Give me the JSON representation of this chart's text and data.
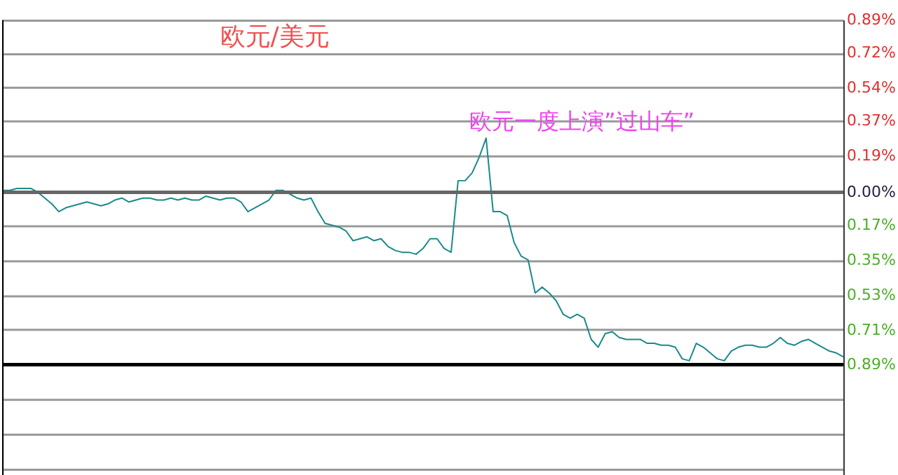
{
  "chart_data": {
    "type": "line",
    "title": "欧元/美元",
    "annotations": [
      "欧元一度上演”过山车”"
    ],
    "categories": [
      null,
      null,
      null,
      null,
      null,
      null,
      null,
      null,
      null,
      null,
      null,
      null,
      null,
      null,
      null,
      null,
      null,
      null,
      null,
      null,
      null,
      null,
      null,
      null,
      null,
      null,
      null,
      null,
      null,
      null,
      null,
      null,
      null,
      null,
      null,
      null,
      null,
      null,
      null,
      null,
      null,
      null,
      null,
      null,
      null,
      null,
      null,
      null,
      null,
      null,
      null,
      null,
      null,
      null,
      null,
      null,
      null,
      null,
      null,
      null,
      null,
      null,
      null,
      null,
      null,
      null,
      null,
      null,
      null,
      null,
      null,
      null,
      null,
      null,
      null,
      null,
      null,
      null,
      null,
      null,
      null,
      null,
      null,
      null,
      null,
      null,
      null,
      null,
      null,
      null,
      null,
      null,
      null,
      null,
      null,
      null,
      null,
      null,
      null,
      null,
      null,
      null,
      null,
      null,
      null,
      null,
      null,
      null,
      null,
      null,
      null,
      null,
      null,
      null,
      null,
      null,
      null,
      null,
      null,
      null,
      null
    ],
    "series": [
      {
        "color": "#1a8a8a",
        "values": [
          0.01,
          0.01,
          0.02,
          0.02,
          0.02,
          0,
          -0.03,
          -0.06,
          -0.1,
          -0.08,
          -0.07,
          -0.06,
          -0.05,
          -0.06,
          -0.07,
          -0.06,
          -0.04,
          -0.03,
          -0.05,
          -0.04,
          -0.03,
          -0.03,
          -0.04,
          -0.04,
          -0.03,
          -0.04,
          -0.03,
          -0.04,
          -0.04,
          -0.02,
          -0.03,
          -0.04,
          -0.03,
          -0.03,
          -0.05,
          -0.1,
          -0.08,
          -0.06,
          -0.04,
          0.01,
          0.01,
          -0.01,
          -0.03,
          -0.04,
          -0.03,
          -0.1,
          -0.16,
          -0.17,
          -0.18,
          -0.2,
          -0.25,
          -0.24,
          -0.23,
          -0.25,
          -0.24,
          -0.28,
          -0.3,
          -0.31,
          -0.31,
          -0.32,
          -0.29,
          -0.24,
          -0.24,
          -0.29,
          -0.31,
          0.06,
          0.06,
          0.1,
          0.18,
          0.28,
          -0.1,
          -0.1,
          -0.12,
          -0.26,
          -0.33,
          -0.35,
          -0.52,
          -0.49,
          -0.52,
          -0.56,
          -0.63,
          -0.65,
          -0.63,
          -0.65,
          -0.76,
          -0.8,
          -0.73,
          -0.72,
          -0.75,
          -0.76,
          -0.76,
          -0.76,
          -0.78,
          -0.78,
          -0.79,
          -0.79,
          -0.8,
          -0.86,
          -0.87,
          -0.78,
          -0.8,
          -0.83,
          -0.86,
          -0.87,
          -0.82,
          -0.8,
          -0.79,
          -0.79,
          -0.8,
          -0.8,
          -0.78,
          -0.75,
          -0.78,
          -0.79,
          -0.77,
          -0.76,
          -0.78,
          -0.8,
          -0.82,
          -0.83,
          -0.85
        ]
      }
    ],
    "ylim": [
      -1.48,
      0.89
    ],
    "yticks": [
      {
        "value": 0.89,
        "label": "0.89%"
      },
      {
        "value": 0.72,
        "label": "0.72%"
      },
      {
        "value": 0.54,
        "label": "0.54%"
      },
      {
        "value": 0.37,
        "label": "0.37%"
      },
      {
        "value": 0.19,
        "label": "0.19%"
      },
      {
        "value": 0,
        "label": "0.00%"
      },
      {
        "value": -0.17,
        "label": "0.17%"
      },
      {
        "value": -0.35,
        "label": "0.35%"
      },
      {
        "value": -0.53,
        "label": "0.53%"
      },
      {
        "value": -0.71,
        "label": "0.71%"
      },
      {
        "value": -0.89,
        "label": "0.89%"
      },
      {
        "value": -1.07,
        "label": null
      },
      {
        "value": -1.25,
        "label": null
      },
      {
        "value": -1.43,
        "label": null
      }
    ],
    "grid": true,
    "ref_lines": [
      {
        "axis": "y",
        "value": 0,
        "color": "#666666"
      },
      {
        "axis": "y",
        "value": -0.89,
        "color": "#000000"
      }
    ]
  }
}
